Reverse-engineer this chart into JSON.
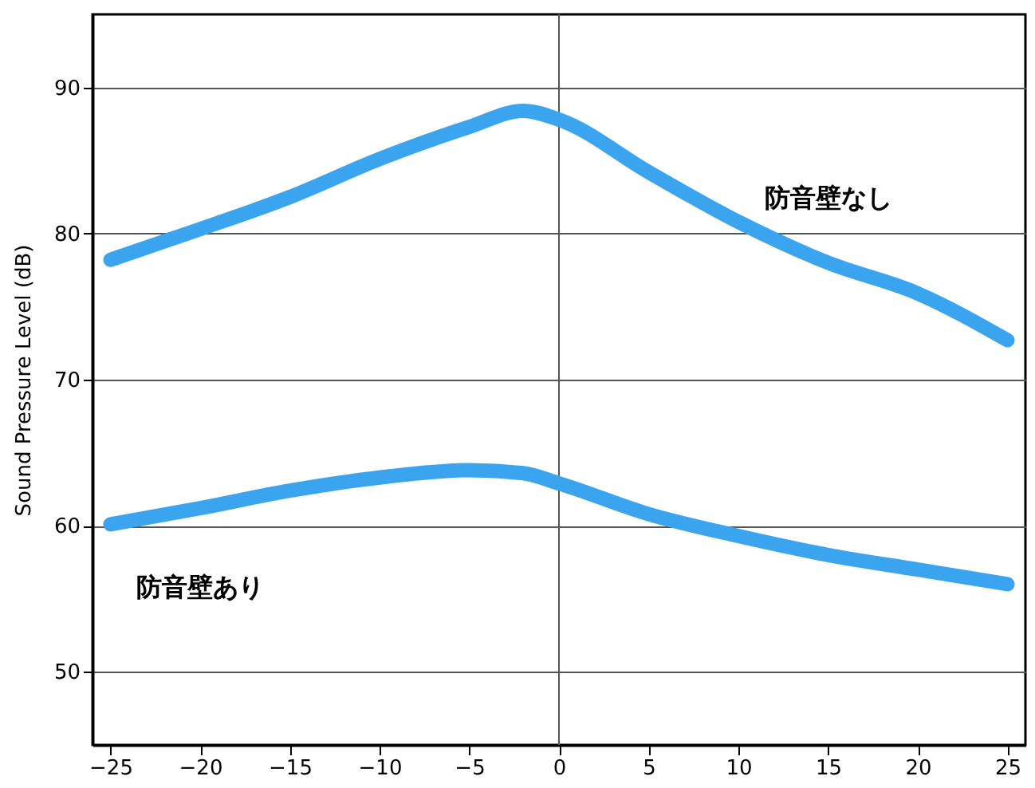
{
  "chart_data": {
    "type": "line",
    "ylabel": "Sound Pressure Level (dB)",
    "x": [
      -25,
      -20,
      -15,
      -10,
      -5,
      -2,
      0,
      5,
      10,
      15,
      20,
      25
    ],
    "series": [
      {
        "name": "防音壁なし",
        "color": "#3aa4ee",
        "values": [
          78.2,
          80.3,
          82.5,
          85.1,
          87.3,
          88.4,
          87.8,
          84.2,
          80.8,
          78.0,
          75.9,
          72.7
        ]
      },
      {
        "name": "防音壁あり",
        "color": "#3aa4ee",
        "values": [
          60.1,
          61.2,
          62.4,
          63.3,
          63.8,
          63.6,
          62.9,
          60.8,
          59.3,
          58.0,
          57.0,
          56.0
        ]
      }
    ],
    "xlim": [
      -26,
      26
    ],
    "xticks": [
      -25,
      -20,
      -15,
      -10,
      -5,
      0,
      5,
      10,
      15,
      20,
      25
    ],
    "ylim": [
      45,
      95
    ],
    "yticks": [
      50,
      60,
      70,
      80,
      90
    ],
    "grid": "y",
    "legend": false,
    "line_style": "solid",
    "ref_lines": [
      {
        "axis": "x",
        "value": 0
      }
    ]
  }
}
